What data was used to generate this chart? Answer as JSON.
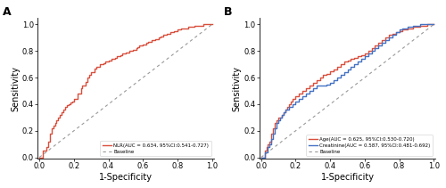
{
  "panel_A": {
    "title": "A",
    "roc_color": "#d94f3d",
    "legend_nlr": "NLR(AUC = 0.634, 95%CI:0.541-0.727)",
    "legend_baseline": "Baseline",
    "xlabel": "1-Specificity",
    "ylabel": "Sensitivity",
    "xticks": [
      0.0,
      0.2,
      0.4,
      0.6,
      0.8,
      1.0
    ],
    "yticks": [
      0.0,
      0.2,
      0.4,
      0.6,
      0.8,
      1.0
    ],
    "nlr_fpr": [
      0.0,
      0.02,
      0.04,
      0.05,
      0.06,
      0.07,
      0.08,
      0.09,
      0.1,
      0.11,
      0.12,
      0.13,
      0.14,
      0.15,
      0.16,
      0.17,
      0.18,
      0.19,
      0.2,
      0.22,
      0.24,
      0.25,
      0.27,
      0.28,
      0.29,
      0.3,
      0.32,
      0.33,
      0.35,
      0.37,
      0.38,
      0.4,
      0.42,
      0.44,
      0.45,
      0.47,
      0.48,
      0.5,
      0.52,
      0.54,
      0.56,
      0.57,
      0.58,
      0.6,
      0.62,
      0.63,
      0.65,
      0.67,
      0.69,
      0.7,
      0.72,
      0.74,
      0.76,
      0.78,
      0.8,
      0.82,
      0.84,
      0.86,
      0.88,
      0.9,
      0.92,
      0.95,
      0.98,
      1.0
    ],
    "nlr_tpr": [
      0.0,
      0.05,
      0.08,
      0.12,
      0.18,
      0.22,
      0.24,
      0.26,
      0.28,
      0.3,
      0.32,
      0.34,
      0.36,
      0.38,
      0.39,
      0.4,
      0.41,
      0.42,
      0.44,
      0.48,
      0.52,
      0.54,
      0.57,
      0.6,
      0.62,
      0.64,
      0.67,
      0.68,
      0.7,
      0.71,
      0.72,
      0.73,
      0.74,
      0.75,
      0.76,
      0.77,
      0.78,
      0.79,
      0.8,
      0.81,
      0.82,
      0.83,
      0.84,
      0.85,
      0.86,
      0.87,
      0.88,
      0.89,
      0.9,
      0.91,
      0.92,
      0.93,
      0.94,
      0.95,
      0.96,
      0.97,
      0.97,
      0.98,
      0.98,
      0.99,
      0.99,
      1.0,
      1.0,
      1.0
    ]
  },
  "panel_B": {
    "title": "B",
    "roc_color_age": "#d94f3d",
    "roc_color_creatinine": "#4472c4",
    "legend_age": "Age(AUC = 0.625, 95%CI:0.530-0.720)",
    "legend_creatinine": "Creatinine(AUC = 0.587, 95%CI:0.481-0.692)",
    "legend_baseline": "Baseline",
    "xlabel": "1-Specificity",
    "ylabel": "Sensitivity",
    "xticks": [
      0.0,
      0.2,
      0.4,
      0.6,
      0.8,
      1.0
    ],
    "yticks": [
      0.0,
      0.2,
      0.4,
      0.6,
      0.8,
      1.0
    ],
    "age_fpr": [
      0.0,
      0.02,
      0.03,
      0.04,
      0.05,
      0.06,
      0.07,
      0.08,
      0.09,
      0.1,
      0.12,
      0.13,
      0.14,
      0.15,
      0.16,
      0.17,
      0.18,
      0.2,
      0.22,
      0.24,
      0.26,
      0.28,
      0.3,
      0.32,
      0.34,
      0.36,
      0.38,
      0.4,
      0.42,
      0.44,
      0.46,
      0.48,
      0.5,
      0.52,
      0.54,
      0.56,
      0.58,
      0.6,
      0.62,
      0.64,
      0.66,
      0.68,
      0.7,
      0.72,
      0.74,
      0.76,
      0.78,
      0.8,
      0.82,
      0.85,
      0.88,
      0.92,
      0.96,
      1.0
    ],
    "age_tpr": [
      0.0,
      0.05,
      0.08,
      0.1,
      0.12,
      0.18,
      0.22,
      0.26,
      0.28,
      0.3,
      0.32,
      0.34,
      0.36,
      0.38,
      0.4,
      0.42,
      0.44,
      0.46,
      0.48,
      0.5,
      0.52,
      0.54,
      0.56,
      0.58,
      0.6,
      0.62,
      0.63,
      0.65,
      0.66,
      0.68,
      0.7,
      0.72,
      0.73,
      0.74,
      0.75,
      0.76,
      0.77,
      0.78,
      0.8,
      0.82,
      0.84,
      0.86,
      0.88,
      0.9,
      0.92,
      0.93,
      0.94,
      0.95,
      0.96,
      0.97,
      0.98,
      0.99,
      1.0,
      1.0
    ],
    "cre_fpr": [
      0.0,
      0.02,
      0.04,
      0.05,
      0.06,
      0.07,
      0.08,
      0.09,
      0.1,
      0.11,
      0.12,
      0.13,
      0.14,
      0.16,
      0.18,
      0.2,
      0.22,
      0.24,
      0.26,
      0.28,
      0.3,
      0.32,
      0.34,
      0.36,
      0.38,
      0.4,
      0.42,
      0.44,
      0.46,
      0.48,
      0.5,
      0.52,
      0.54,
      0.56,
      0.58,
      0.6,
      0.62,
      0.64,
      0.66,
      0.68,
      0.7,
      0.72,
      0.74,
      0.76,
      0.78,
      0.8,
      0.82,
      0.85,
      0.88,
      0.92,
      0.96,
      1.0
    ],
    "cre_tpr": [
      0.0,
      0.04,
      0.08,
      0.1,
      0.14,
      0.18,
      0.22,
      0.26,
      0.28,
      0.3,
      0.32,
      0.34,
      0.36,
      0.38,
      0.4,
      0.42,
      0.44,
      0.46,
      0.48,
      0.5,
      0.52,
      0.54,
      0.54,
      0.54,
      0.55,
      0.56,
      0.58,
      0.6,
      0.62,
      0.64,
      0.66,
      0.68,
      0.7,
      0.72,
      0.74,
      0.76,
      0.78,
      0.8,
      0.82,
      0.84,
      0.86,
      0.88,
      0.9,
      0.92,
      0.94,
      0.96,
      0.97,
      0.98,
      0.99,
      1.0,
      1.0,
      1.0
    ]
  },
  "background_color": "#ffffff",
  "label_fontsize": 7,
  "tick_fontsize": 6,
  "line_width": 1.0,
  "baseline_color": "#999999",
  "baseline_linewidth": 0.8
}
